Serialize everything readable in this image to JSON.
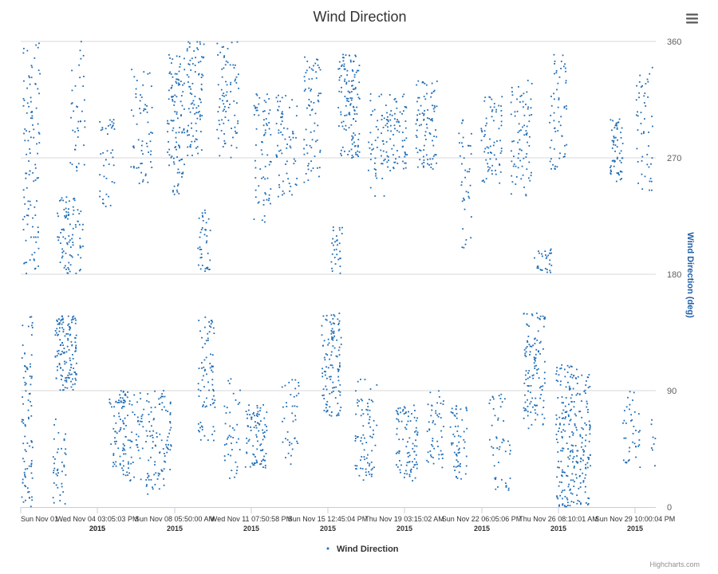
{
  "chart_data": {
    "type": "scatter",
    "title": "Wind Direction",
    "ylabel": "Wind Direction (deg)",
    "ylim": [
      0,
      360
    ],
    "yticks": [
      0,
      90,
      180,
      270,
      360
    ],
    "x_tick_labels": [
      {
        "label": "Sun Nov 01 …",
        "year": "2015"
      },
      {
        "label": "Wed Nov 04 03:05:03 PM",
        "year": "2015"
      },
      {
        "label": "Sun Nov 08 05:50:00 AM",
        "year": "2015"
      },
      {
        "label": "Wed Nov 11 07:50:58 PM",
        "year": "2015"
      },
      {
        "label": "Sun Nov 15 12:45:04 PM",
        "year": "2015"
      },
      {
        "label": "Thu Nov 19 03:15:02 AM",
        "year": "2015"
      },
      {
        "label": "Sun Nov 22 06:05:06 PM",
        "year": "2015"
      },
      {
        "label": "Thu Nov 26 08:10:01 AM",
        "year": "2015"
      },
      {
        "label": "Sun Nov 29 10:00:04 PM",
        "year": "2015"
      }
    ],
    "xlim": [
      "2015-11-01 00:00",
      "2015-11-30 10:00"
    ],
    "grid": true,
    "legend_position": "bottom-center",
    "series": [
      {
        "name": "Wind Direction",
        "color": "#1f6db5",
        "clusters": [
          {
            "day": 0.3,
            "spread": 0.5,
            "y_min": 0,
            "y_max": 150,
            "n": 90
          },
          {
            "day": 0.5,
            "spread": 0.8,
            "y_min": 180,
            "y_max": 360,
            "n": 110
          },
          {
            "day": 1.8,
            "spread": 0.6,
            "y_min": 0,
            "y_max": 70,
            "n": 40
          },
          {
            "day": 2.1,
            "spread": 1.0,
            "y_min": 90,
            "y_max": 150,
            "n": 140
          },
          {
            "day": 2.3,
            "spread": 1.2,
            "y_min": 180,
            "y_max": 240,
            "n": 90
          },
          {
            "day": 2.6,
            "spread": 0.8,
            "y_min": 260,
            "y_max": 360,
            "n": 40
          },
          {
            "day": 4.0,
            "spread": 0.7,
            "y_min": 230,
            "y_max": 300,
            "n": 40
          },
          {
            "day": 4.5,
            "spread": 0.8,
            "y_min": 30,
            "y_max": 90,
            "n": 60
          },
          {
            "day": 5.2,
            "spread": 1.0,
            "y_min": 20,
            "y_max": 90,
            "n": 70
          },
          {
            "day": 5.6,
            "spread": 1.0,
            "y_min": 250,
            "y_max": 340,
            "n": 60
          },
          {
            "day": 6.4,
            "spread": 1.2,
            "y_min": 10,
            "y_max": 90,
            "n": 100
          },
          {
            "day": 7.2,
            "spread": 0.8,
            "y_min": 240,
            "y_max": 350,
            "n": 110
          },
          {
            "day": 8.1,
            "spread": 0.8,
            "y_min": 270,
            "y_max": 360,
            "n": 90
          },
          {
            "day": 8.5,
            "spread": 0.6,
            "y_min": 180,
            "y_max": 230,
            "n": 40
          },
          {
            "day": 8.6,
            "spread": 0.8,
            "y_min": 50,
            "y_max": 150,
            "n": 80
          },
          {
            "day": 9.6,
            "spread": 1.0,
            "y_min": 270,
            "y_max": 360,
            "n": 80
          },
          {
            "day": 9.8,
            "spread": 0.8,
            "y_min": 20,
            "y_max": 100,
            "n": 40
          },
          {
            "day": 10.9,
            "spread": 1.0,
            "y_min": 30,
            "y_max": 80,
            "n": 90
          },
          {
            "day": 11.2,
            "spread": 0.8,
            "y_min": 220,
            "y_max": 320,
            "n": 70
          },
          {
            "day": 12.3,
            "spread": 1.0,
            "y_min": 240,
            "y_max": 320,
            "n": 70
          },
          {
            "day": 12.5,
            "spread": 0.8,
            "y_min": 30,
            "y_max": 100,
            "n": 40
          },
          {
            "day": 13.5,
            "spread": 0.8,
            "y_min": 250,
            "y_max": 350,
            "n": 70
          },
          {
            "day": 14.4,
            "spread": 0.9,
            "y_min": 70,
            "y_max": 150,
            "n": 120
          },
          {
            "day": 14.6,
            "spread": 0.6,
            "y_min": 180,
            "y_max": 220,
            "n": 30
          },
          {
            "day": 15.2,
            "spread": 1.0,
            "y_min": 270,
            "y_max": 350,
            "n": 130
          },
          {
            "day": 16.0,
            "spread": 1.0,
            "y_min": 20,
            "y_max": 100,
            "n": 80
          },
          {
            "day": 16.5,
            "spread": 0.8,
            "y_min": 240,
            "y_max": 320,
            "n": 50
          },
          {
            "day": 17.4,
            "spread": 1.0,
            "y_min": 260,
            "y_max": 320,
            "n": 80
          },
          {
            "day": 17.9,
            "spread": 1.0,
            "y_min": 20,
            "y_max": 80,
            "n": 90
          },
          {
            "day": 18.8,
            "spread": 1.0,
            "y_min": 260,
            "y_max": 330,
            "n": 90
          },
          {
            "day": 19.2,
            "spread": 0.8,
            "y_min": 30,
            "y_max": 90,
            "n": 50
          },
          {
            "day": 20.3,
            "spread": 0.8,
            "y_min": 20,
            "y_max": 80,
            "n": 60
          },
          {
            "day": 20.6,
            "spread": 0.6,
            "y_min": 200,
            "y_max": 300,
            "n": 40
          },
          {
            "day": 21.8,
            "spread": 1.0,
            "y_min": 250,
            "y_max": 320,
            "n": 70
          },
          {
            "day": 22.2,
            "spread": 1.0,
            "y_min": 10,
            "y_max": 90,
            "n": 50
          },
          {
            "day": 23.2,
            "spread": 1.0,
            "y_min": 240,
            "y_max": 330,
            "n": 80
          },
          {
            "day": 23.8,
            "spread": 1.0,
            "y_min": 60,
            "y_max": 150,
            "n": 120
          },
          {
            "day": 24.2,
            "spread": 0.8,
            "y_min": 180,
            "y_max": 200,
            "n": 30
          },
          {
            "day": 24.9,
            "spread": 0.8,
            "y_min": 260,
            "y_max": 350,
            "n": 60
          },
          {
            "day": 25.6,
            "spread": 1.6,
            "y_min": 0,
            "y_max": 110,
            "n": 260
          },
          {
            "day": 27.6,
            "spread": 0.6,
            "y_min": 250,
            "y_max": 300,
            "n": 60
          },
          {
            "day": 28.3,
            "spread": 0.8,
            "y_min": 30,
            "y_max": 90,
            "n": 40
          },
          {
            "day": 28.9,
            "spread": 0.8,
            "y_min": 240,
            "y_max": 340,
            "n": 50
          },
          {
            "day": 29.5,
            "spread": 0.6,
            "y_min": 30,
            "y_max": 70,
            "n": 30
          },
          {
            "day": 29.7,
            "spread": 0.5,
            "y_min": 200,
            "y_max": 320,
            "n": 40
          }
        ]
      }
    ]
  },
  "legend": {
    "label": "Wind Direction"
  },
  "credits": "Highcharts.com"
}
